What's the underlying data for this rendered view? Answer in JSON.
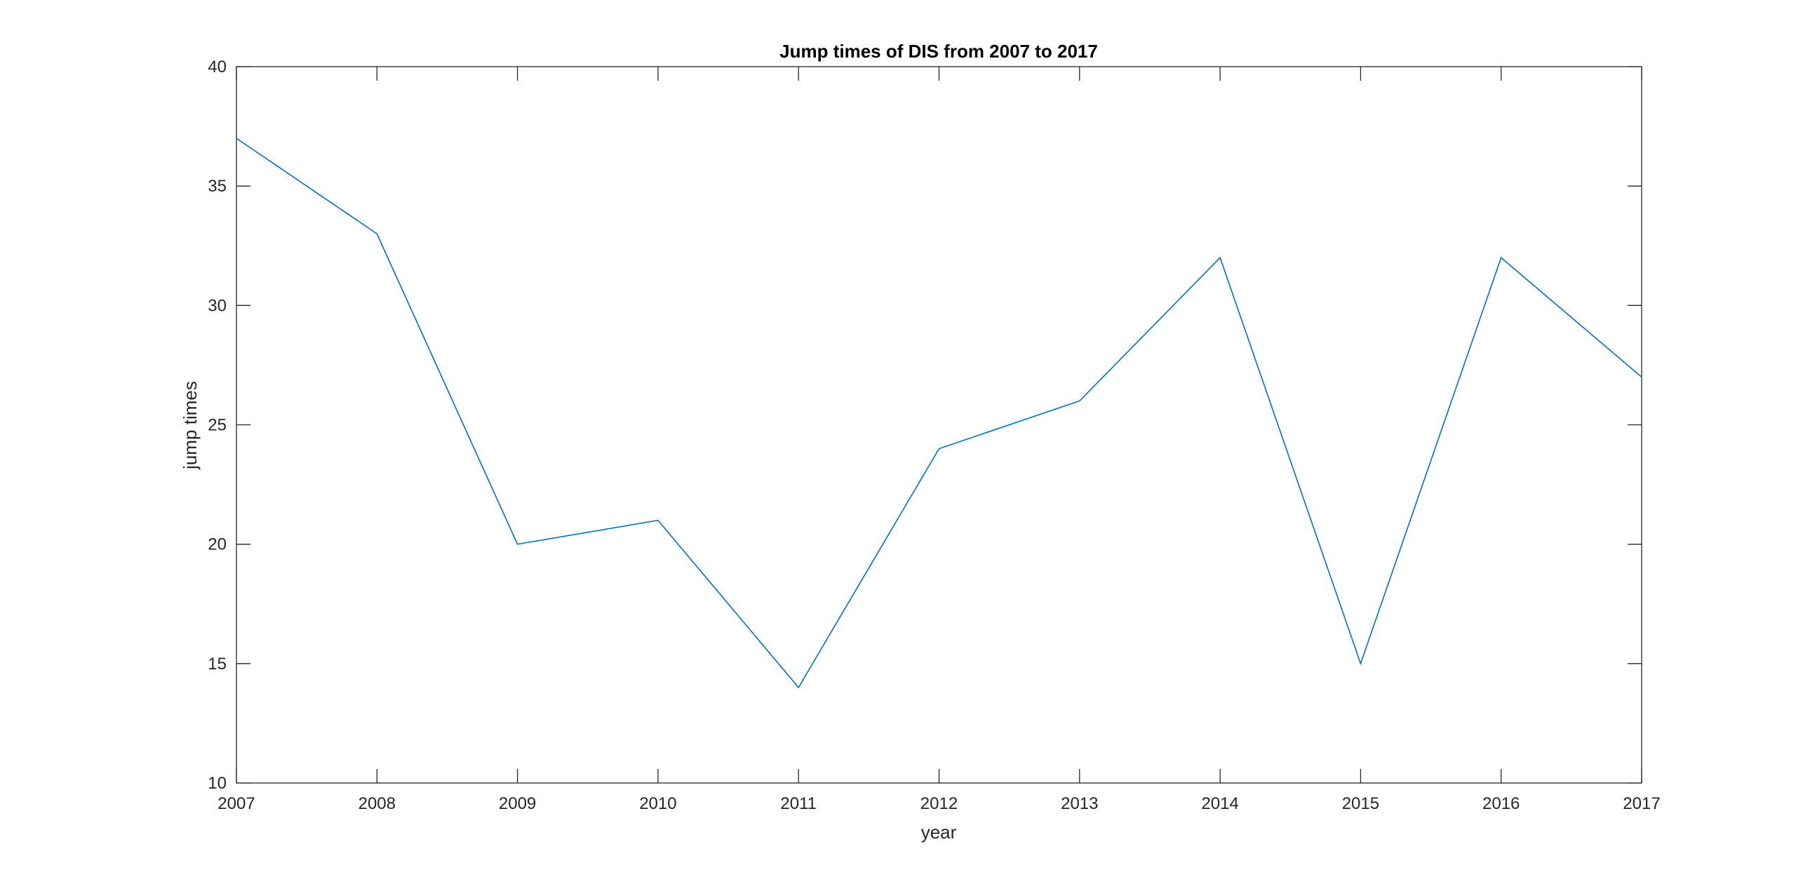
{
  "chart_data": {
    "type": "line",
    "title": "Jump times of DIS from 2007 to 2017",
    "xlabel": "year",
    "ylabel": "jump times",
    "x": [
      2007,
      2008,
      2009,
      2010,
      2011,
      2012,
      2013,
      2014,
      2015,
      2016,
      2017
    ],
    "series": [
      {
        "values": [
          37,
          33,
          20,
          21,
          14,
          24,
          26,
          32,
          15,
          32,
          27
        ],
        "color": "#0072BD"
      }
    ],
    "xlim": [
      2007,
      2017
    ],
    "ylim": [
      10,
      40
    ],
    "xticks": [
      "2007",
      "2008",
      "2009",
      "2010",
      "2011",
      "2012",
      "2013",
      "2014",
      "2015",
      "2016",
      "2017"
    ],
    "yticks": [
      "10",
      "15",
      "20",
      "25",
      "30",
      "35",
      "40"
    ],
    "grid": false,
    "legend": "none"
  }
}
